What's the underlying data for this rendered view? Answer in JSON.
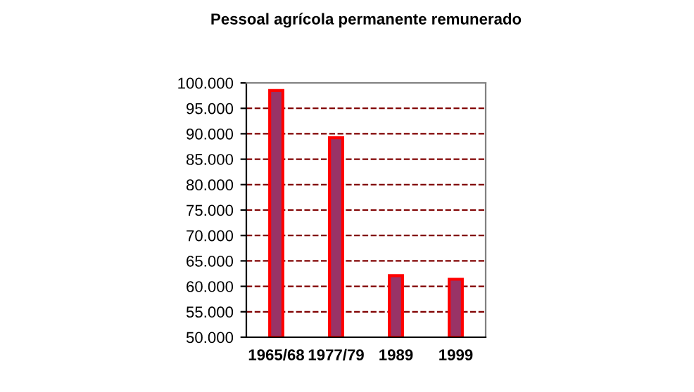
{
  "chart_data": {
    "type": "bar",
    "title": "Pessoal agrícola permanente remunerado",
    "categories": [
      "1965/68",
      "1977/79",
      "1989",
      "1999"
    ],
    "series": [
      {
        "color": "#993366",
        "values": [
          98500,
          89200,
          62100,
          61400
        ]
      }
    ],
    "ylim": [
      50000,
      100000
    ],
    "yticks": [
      {
        "value": 50000,
        "label": "50.000"
      },
      {
        "value": 55000,
        "label": "55.000"
      },
      {
        "value": 60000,
        "label": "60.000"
      },
      {
        "value": 65000,
        "label": "65.000"
      },
      {
        "value": 70000,
        "label": "70.000"
      },
      {
        "value": 75000,
        "label": "75.000"
      },
      {
        "value": 80000,
        "label": "80.000"
      },
      {
        "value": 85000,
        "label": "85.000"
      },
      {
        "value": 90000,
        "label": "90.000"
      },
      {
        "value": 95000,
        "label": "95.000"
      },
      {
        "value": 100000,
        "label": "100.000"
      }
    ],
    "grid": "y",
    "line_style": "dashed"
  }
}
